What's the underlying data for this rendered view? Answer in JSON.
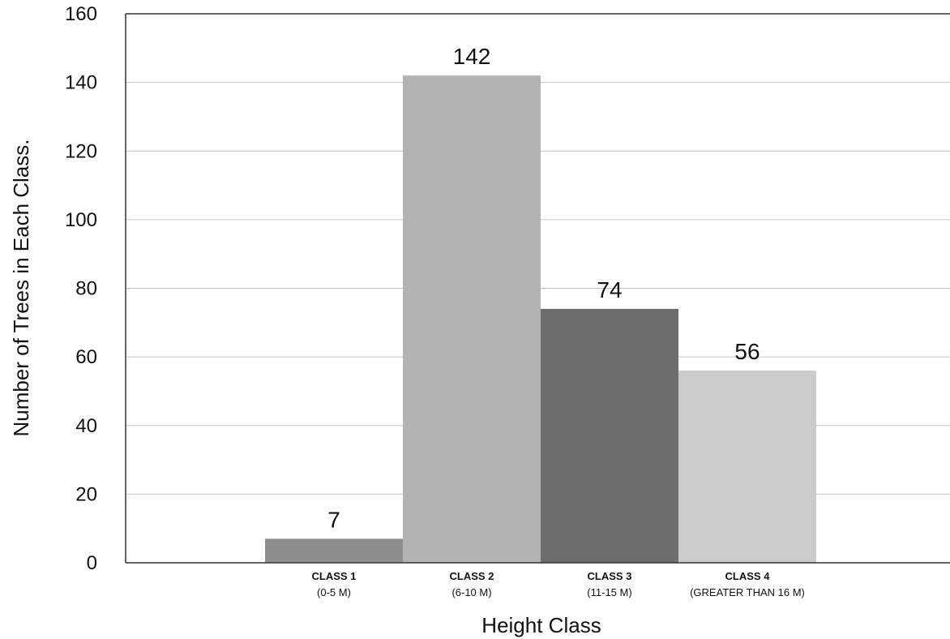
{
  "chart_data": {
    "type": "bar",
    "title": "",
    "xlabel": "Height Class",
    "ylabel": "Number of Trees in Each Class.",
    "ylim": [
      0,
      160
    ],
    "yticks": [
      0,
      20,
      40,
      60,
      80,
      100,
      120,
      140,
      160
    ],
    "grid": true,
    "categories": [
      {
        "name": "CLASS 1",
        "range": "(0-5 M)"
      },
      {
        "name": "CLASS 2",
        "range": "(6-10 M)"
      },
      {
        "name": "CLASS 3",
        "range": "(11-15 M)"
      },
      {
        "name": "CLASS 4",
        "range": "(GREATER THAN 16 M)"
      }
    ],
    "values": [
      7,
      142,
      74,
      56
    ],
    "colors": [
      "#8e8e8e",
      "#b3b3b3",
      "#6d6d6d",
      "#cbcbcb"
    ]
  }
}
